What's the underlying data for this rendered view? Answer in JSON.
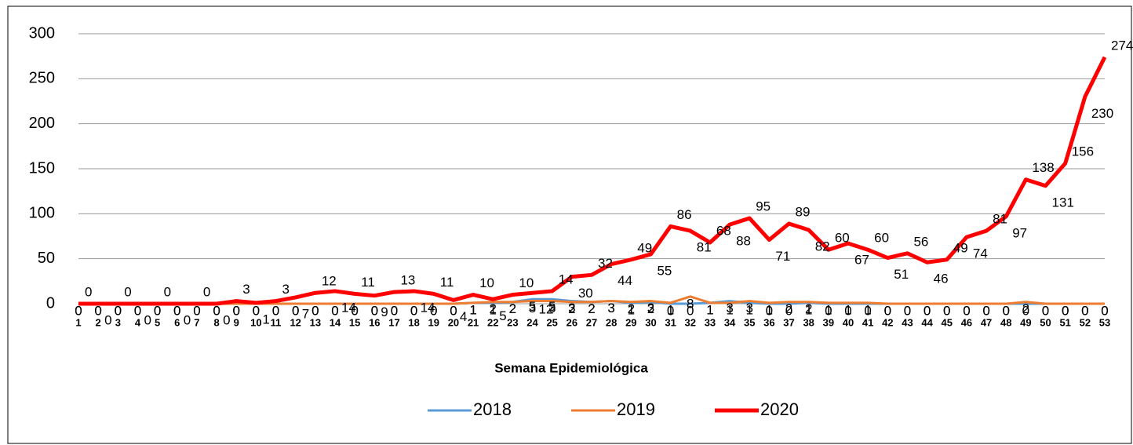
{
  "chart_data": {
    "type": "line",
    "x_label": "Semana Epidemiológica",
    "categories": [
      "1",
      "2",
      "3",
      "4",
      "5",
      "6",
      "7",
      "8",
      "9",
      "10",
      "11",
      "12",
      "13",
      "14",
      "15",
      "16",
      "17",
      "18",
      "19",
      "20",
      "21",
      "22",
      "23",
      "24",
      "25",
      "26",
      "27",
      "28",
      "29",
      "30",
      "31",
      "32",
      "33",
      "34",
      "35",
      "36",
      "37",
      "38",
      "39",
      "40",
      "41",
      "42",
      "43",
      "44",
      "45",
      "46",
      "47",
      "48",
      "49",
      "50",
      "51",
      "52",
      "53"
    ],
    "series": [
      {
        "name": "2018",
        "color": "#5b9bd5",
        "width": 3,
        "values": [
          0,
          0,
          0,
          0,
          0,
          0,
          0,
          0,
          0,
          0,
          0,
          0,
          0,
          0,
          0,
          0,
          0,
          0,
          0,
          0,
          1,
          1,
          2,
          5,
          5,
          3,
          2,
          3,
          1,
          2,
          0,
          0,
          1,
          3,
          1,
          0,
          0,
          1,
          0,
          0,
          0,
          0,
          0,
          0,
          0,
          0,
          0,
          0,
          0,
          0,
          0,
          0,
          0
        ]
      },
      {
        "name": "2019",
        "color": "#ed7d31",
        "width": 3,
        "values": [
          0,
          0,
          0,
          0,
          0,
          0,
          0,
          0,
          0,
          0,
          0,
          0,
          0,
          0,
          0,
          0,
          0,
          0,
          0,
          0,
          1,
          2,
          2,
          3,
          3,
          2,
          2,
          3,
          2,
          3,
          1,
          8,
          1,
          1,
          3,
          1,
          2,
          2,
          1,
          1,
          1,
          0,
          0,
          0,
          0,
          0,
          0,
          0,
          2,
          0,
          0,
          0,
          0
        ]
      },
      {
        "name": "2020",
        "color": "#ff0000",
        "width": 5,
        "values": [
          0,
          0,
          0,
          0,
          0,
          0,
          0,
          0,
          3,
          1,
          3,
          7,
          12,
          14,
          11,
          9,
          13,
          14,
          11,
          4,
          10,
          5,
          10,
          12,
          14,
          30,
          32,
          44,
          49,
          55,
          86,
          81,
          68,
          88,
          95,
          71,
          89,
          82,
          60,
          67,
          60,
          51,
          56,
          46,
          49,
          74,
          81,
          97,
          138,
          131,
          156,
          230,
          274
        ]
      }
    ],
    "ylim": [
      0,
      300
    ],
    "yticks": [
      0,
      50,
      100,
      150,
      200,
      250,
      300
    ],
    "grid": true,
    "legend": "bottom"
  }
}
